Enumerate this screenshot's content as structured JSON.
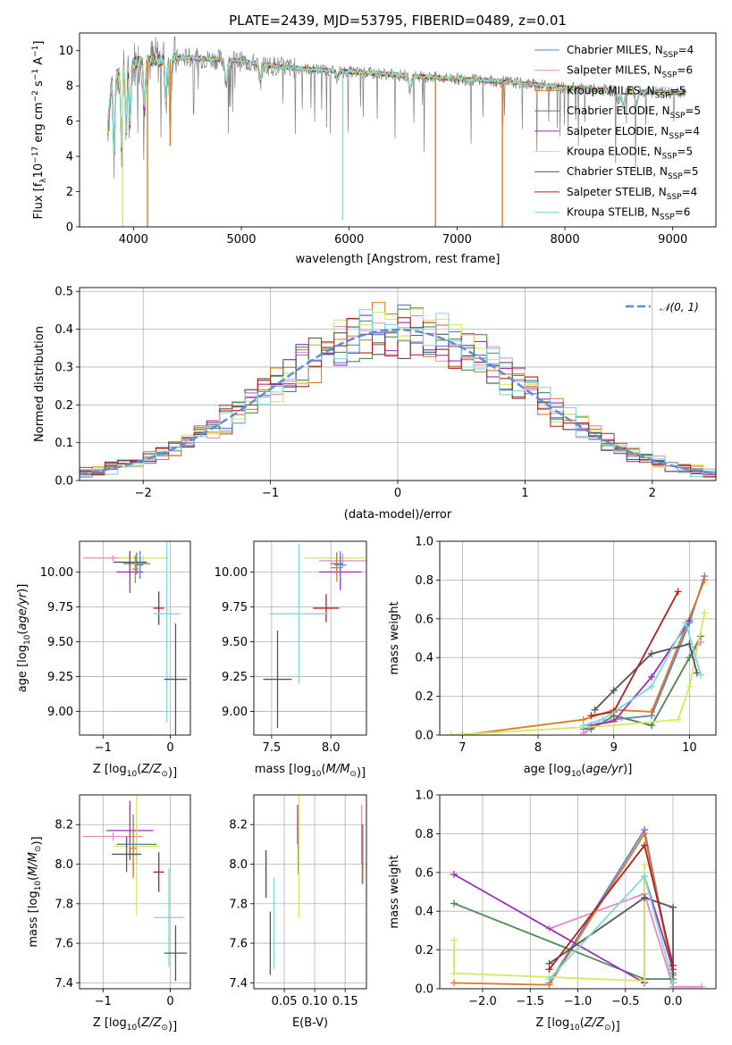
{
  "colors": {
    "Chabrier MILES": "#5b7fd6",
    "Salpeter MILES": "#e58ac0",
    "Kroupa MILES": "#e07a22",
    "Chabrier ELODIE": "#4f8a55",
    "Salpeter ELODIE": "#9a2fb5",
    "Kroupa ELODIE": "#d8e85a",
    "Chabrier STELIB": "#555555",
    "Salpeter STELIB": "#b21f1f",
    "Kroupa STELIB": "#7ed9d9",
    "data": "#808080",
    "normal_curve": "#5b8ed6"
  },
  "chart_data": [
    {
      "id": "spectrum",
      "type": "line",
      "title": "PLATE=2439, MJD=53795, FIBERID=0489, z=0.01",
      "xlabel": "wavelength [Angstrom, rest frame]",
      "ylabel": "Flux [fλ10⁻¹⁷ erg cm⁻² s⁻¹ A⁻¹]",
      "xlim": [
        3500,
        9400
      ],
      "ylim": [
        0,
        11
      ],
      "xticks": [
        4000,
        5000,
        6000,
        7000,
        8000,
        9000
      ],
      "yticks": [
        0,
        2,
        4,
        6,
        8,
        10
      ],
      "legend_position": "top-right",
      "legend": [
        {
          "label": "Chabrier MILES, N",
          "sub": "SSP",
          "suffix": "=4",
          "series": "Chabrier MILES"
        },
        {
          "label": "Salpeter MILES, N",
          "sub": "SSP",
          "suffix": "=6",
          "series": "Salpeter MILES"
        },
        {
          "label": "Kroupa MILES, N",
          "sub": "SSP",
          "suffix": "=5",
          "series": "Kroupa MILES"
        },
        {
          "label": "Chabrier ELODIE, N",
          "sub": "SSP",
          "suffix": "=5",
          "series": "Chabrier ELODIE"
        },
        {
          "label": "Salpeter ELODIE, N",
          "sub": "SSP",
          "suffix": "=4",
          "series": "Salpeter ELODIE"
        },
        {
          "label": "Kroupa ELODIE, N",
          "sub": "SSP",
          "suffix": "=5",
          "series": "Kroupa ELODIE"
        },
        {
          "label": "Chabrier STELIB, N",
          "sub": "SSP",
          "suffix": "=5",
          "series": "Chabrier STELIB"
        },
        {
          "label": "Salpeter STELIB, N",
          "sub": "SSP",
          "suffix": "=4",
          "series": "Salpeter STELIB"
        },
        {
          "label": "Kroupa STELIB, N",
          "sub": "SSP",
          "suffix": "=6",
          "series": "Kroupa STELIB"
        }
      ],
      "continuum": [
        [
          3760,
          5.6
        ],
        [
          3800,
          8.3
        ],
        [
          3900,
          9.0
        ],
        [
          4000,
          9.3
        ],
        [
          4100,
          9.4
        ],
        [
          4300,
          9.5
        ],
        [
          4500,
          9.6
        ],
        [
          4800,
          9.5
        ],
        [
          5000,
          9.4
        ],
        [
          5200,
          9.2
        ],
        [
          5500,
          9.0
        ],
        [
          6000,
          8.8
        ],
        [
          6500,
          8.6
        ],
        [
          7000,
          8.4
        ],
        [
          7500,
          8.2
        ],
        [
          8000,
          7.9
        ],
        [
          8500,
          7.7
        ],
        [
          9000,
          7.6
        ],
        [
          9120,
          7.6
        ]
      ],
      "absorption_features": [
        [
          3820,
          3.8
        ],
        [
          3890,
          4.4
        ],
        [
          3933,
          5.3
        ],
        [
          3968,
          5.9
        ],
        [
          4102,
          6.5
        ],
        [
          4300,
          6.9
        ],
        [
          4340,
          6.5
        ],
        [
          4861,
          8.2
        ],
        [
          5175,
          8.3
        ],
        [
          5890,
          8.4
        ],
        [
          6563,
          7.8
        ],
        [
          8498,
          7.1
        ],
        [
          8542,
          6.8
        ],
        [
          8662,
          6.9
        ]
      ],
      "model_dropouts": [
        {
          "x": 3900,
          "y": 0.0,
          "series": "Kroupa ELODIE"
        },
        {
          "x": 4130,
          "y": 0.0,
          "series": "Kroupa MILES"
        },
        {
          "x": 4340,
          "y": 4.6,
          "series": "Kroupa MILES"
        },
        {
          "x": 5940,
          "y": 0.4,
          "series": "Kroupa STELIB"
        },
        {
          "x": 6800,
          "y": 0.0,
          "series": "Kroupa MILES"
        },
        {
          "x": 7420,
          "y": 0.0,
          "series": "Kroupa MILES"
        }
      ]
    },
    {
      "id": "residuals",
      "type": "line",
      "xlabel": "(data-model)/error",
      "ylabel": "Normed distribution",
      "xlim": [
        -2.5,
        2.5
      ],
      "ylim": [
        0,
        0.51
      ],
      "xticks": [
        -2,
        -1,
        0,
        1,
        2
      ],
      "yticks": [
        0.0,
        0.1,
        0.2,
        0.3,
        0.4,
        0.5
      ],
      "grid": true,
      "legend_position": "top-right",
      "legend": [
        {
          "label": "𝒩(0, 1)",
          "series": "normal_curve"
        }
      ],
      "bin_edges_range": [
        -2.5,
        2.5
      ],
      "bin_width": 0.1,
      "curve": {
        "mean": 0,
        "sigma": 1,
        "style": "dashed"
      }
    },
    {
      "id": "age_vs_Z",
      "type": "scatter",
      "xlabel": "Z [log₁₀(Z/Z⊙)]",
      "ylabel": "age  [log₁₀(age/yr)]",
      "xlim": [
        -1.35,
        0.3
      ],
      "ylim": [
        8.83,
        10.22
      ],
      "xticks": [
        -1,
        0
      ],
      "yticks": [
        9.0,
        9.25,
        9.5,
        9.75,
        10.0
      ],
      "grid": true,
      "points": [
        {
          "series": "Salpeter MILES",
          "x": -0.85,
          "y": 10.1,
          "xerr": 0.45,
          "yerr": 0.02
        },
        {
          "series": "Chabrier STELIB",
          "x": -0.6,
          "y": 10.07,
          "xerr": 0.25,
          "yerr": 0.08
        },
        {
          "series": "Kroupa ELODIE",
          "x": -0.4,
          "y": 10.1,
          "xerr": 0.38,
          "yerr": 0.02
        },
        {
          "series": "Chabrier ELODIE",
          "x": -0.5,
          "y": 10.06,
          "xerr": 0.2,
          "yerr": 0.08
        },
        {
          "series": "Salpeter ELODIE",
          "x": -0.6,
          "y": 10.0,
          "xerr": 0.2,
          "yerr": 0.15
        },
        {
          "series": "Kroupa MILES",
          "x": -0.52,
          "y": 10.02,
          "xerr": 0.05,
          "yerr": 0.1
        },
        {
          "series": "Chabrier MILES",
          "x": -0.45,
          "y": 10.05,
          "xerr": 0.05,
          "yerr": 0.1
        },
        {
          "series": "Salpeter STELIB",
          "x": -0.17,
          "y": 9.74,
          "xerr": 0.08,
          "yerr": 0.12
        },
        {
          "series": "Kroupa STELIB",
          "x": -0.05,
          "y": 9.7,
          "xerr": 0.2,
          "yerr": 0.78
        },
        {
          "series": "Chabrier STELIB",
          "x": 0.08,
          "y": 9.23,
          "xerr": 0.17,
          "yerr": 0.4
        }
      ]
    },
    {
      "id": "age_vs_mass",
      "type": "scatter",
      "xlabel": "mass [log₁₀(M/M⊙)]",
      "ylabel": "",
      "xlim": [
        7.35,
        8.3
      ],
      "ylim": [
        8.83,
        10.22
      ],
      "xticks": [
        7.5,
        8.0
      ],
      "yticks": [
        9.0,
        9.25,
        9.5,
        9.75,
        10.0
      ],
      "grid": true,
      "points": [
        {
          "series": "Kroupa ELODIE",
          "x": 8.05,
          "y": 10.1,
          "xerr": 0.28,
          "yerr": 0.02
        },
        {
          "series": "Salpeter MILES",
          "x": 8.1,
          "y": 10.08,
          "xerr": 0.2,
          "yerr": 0.05
        },
        {
          "series": "Chabrier ELODIE",
          "x": 8.05,
          "y": 10.06,
          "xerr": 0.05,
          "yerr": 0.08
        },
        {
          "series": "Salpeter ELODIE",
          "x": 8.08,
          "y": 10.0,
          "xerr": 0.18,
          "yerr": 0.13
        },
        {
          "series": "Kroupa MILES",
          "x": 8.05,
          "y": 10.03,
          "xerr": 0.05,
          "yerr": 0.1
        },
        {
          "series": "Chabrier MILES",
          "x": 8.08,
          "y": 10.05,
          "xerr": 0.05,
          "yerr": 0.1
        },
        {
          "series": "Salpeter STELIB",
          "x": 7.96,
          "y": 9.74,
          "xerr": 0.11,
          "yerr": 0.1
        },
        {
          "series": "Kroupa STELIB",
          "x": 7.73,
          "y": 9.7,
          "xerr": 0.25,
          "yerr": 0.5
        },
        {
          "series": "Chabrier STELIB",
          "x": 7.55,
          "y": 9.23,
          "xerr": 0.12,
          "yerr": 0.35
        }
      ]
    },
    {
      "id": "mass_weight_vs_age",
      "type": "line",
      "xlabel": "age  [log₁₀(age/yr)]",
      "ylabel": "mass weight",
      "xlim": [
        6.7,
        10.35
      ],
      "ylim": [
        0,
        1.0
      ],
      "xticks": [
        7,
        8,
        9,
        10
      ],
      "yticks": [
        0.0,
        0.2,
        0.4,
        0.6,
        0.8,
        1.0
      ],
      "grid": true,
      "series": [
        {
          "name": "Chabrier MILES",
          "x": [
            8.6,
            9.0,
            9.5,
            10.0,
            10.2
          ],
          "y": [
            0.03,
            0.08,
            0.1,
            0.58,
            0.82
          ]
        },
        {
          "name": "Salpeter MILES",
          "x": [
            8.6,
            8.8,
            9.1,
            9.5,
            10.0,
            10.15
          ],
          "y": [
            0.01,
            0.06,
            0.09,
            0.05,
            0.4,
            0.48
          ]
        },
        {
          "name": "Kroupa MILES",
          "x": [
            7.0,
            8.6,
            9.0,
            9.5,
            10.2
          ],
          "y": [
            0.0,
            0.08,
            0.13,
            0.12,
            0.8
          ]
        },
        {
          "name": "Chabrier ELODIE",
          "x": [
            8.7,
            9.0,
            9.5,
            10.0,
            10.15
          ],
          "y": [
            0.03,
            0.1,
            0.05,
            0.4,
            0.51
          ]
        },
        {
          "name": "Salpeter ELODIE",
          "x": [
            8.7,
            9.0,
            9.5,
            10.0
          ],
          "y": [
            0.05,
            0.07,
            0.3,
            0.59
          ]
        },
        {
          "name": "Kroupa ELODIE",
          "x": [
            6.85,
            9.0,
            9.85,
            10.0,
            10.2
          ],
          "y": [
            0.0,
            0.05,
            0.08,
            0.25,
            0.63
          ]
        },
        {
          "name": "Chabrier STELIB",
          "x": [
            8.75,
            9.0,
            9.5,
            10.0,
            10.1
          ],
          "y": [
            0.13,
            0.23,
            0.42,
            0.47,
            0.32
          ]
        },
        {
          "name": "Salpeter STELIB",
          "x": [
            8.7,
            9.0,
            9.85
          ],
          "y": [
            0.1,
            0.12,
            0.74
          ]
        },
        {
          "name": "Kroupa STELIB",
          "x": [
            8.6,
            8.85,
            9.5,
            9.95,
            10.15
          ],
          "y": [
            0.05,
            0.08,
            0.25,
            0.58,
            0.31
          ]
        }
      ]
    },
    {
      "id": "mass_vs_Z",
      "type": "scatter",
      "xlabel": "Z [log₁₀(Z/Z⊙)]",
      "ylabel": "mass [log₁₀(M/M⊙)]",
      "xlim": [
        -1.35,
        0.3
      ],
      "ylim": [
        7.37,
        8.35
      ],
      "xticks": [
        -1,
        0
      ],
      "yticks": [
        7.4,
        7.6,
        7.8,
        8.0,
        8.2
      ],
      "grid": true,
      "points": [
        {
          "series": "Salpeter MILES",
          "x": -0.85,
          "y": 8.14,
          "xerr": 0.45,
          "yerr": 0.02
        },
        {
          "series": "Salpeter ELODIE",
          "x": -0.6,
          "y": 8.17,
          "xerr": 0.35,
          "yerr": 0.15
        },
        {
          "series": "Chabrier ELODIE",
          "x": -0.5,
          "y": 8.1,
          "xerr": 0.3,
          "yerr": 0.1
        },
        {
          "series": "Kroupa ELODIE",
          "x": -0.5,
          "y": 8.09,
          "xerr": 0.35,
          "yerr": 0.35
        },
        {
          "series": "Chabrier MILES",
          "x": -0.55,
          "y": 8.1,
          "xerr": 0.2,
          "yerr": 0.15
        },
        {
          "series": "Kroupa MILES",
          "x": -0.55,
          "y": 8.08,
          "xerr": 0.05,
          "yerr": 0.15
        },
        {
          "series": "Chabrier STELIB",
          "x": -0.65,
          "y": 8.05,
          "xerr": 0.22,
          "yerr": 0.09
        },
        {
          "series": "Salpeter STELIB",
          "x": -0.17,
          "y": 7.96,
          "xerr": 0.08,
          "yerr": 0.1
        },
        {
          "series": "Kroupa STELIB",
          "x": -0.02,
          "y": 7.73,
          "xerr": 0.22,
          "yerr": 0.25
        },
        {
          "series": "Chabrier STELIB",
          "x": 0.08,
          "y": 7.55,
          "xerr": 0.17,
          "yerr": 0.14
        }
      ]
    },
    {
      "id": "mass_vs_ebv",
      "type": "scatter",
      "xlabel": "E(B-V)",
      "ylabel": "",
      "xlim": [
        0.0,
        0.185
      ],
      "ylim": [
        7.37,
        8.35
      ],
      "xticks": [
        0.05,
        0.1,
        0.15
      ],
      "yticks": [
        7.4,
        7.6,
        7.8,
        8.0,
        8.2
      ],
      "grid": true,
      "points": [
        {
          "series": "Salpeter STELIB",
          "x": 0.02,
          "y": 7.95,
          "xerr": 0.0,
          "yerr": 0.12
        },
        {
          "series": "Chabrier STELIB",
          "x": 0.027,
          "y": 7.6,
          "xerr": 0.0,
          "yerr": 0.16
        },
        {
          "series": "Kroupa STELIB",
          "x": 0.033,
          "y": 7.7,
          "xerr": 0.0,
          "yerr": 0.23
        },
        {
          "series": "Salpeter ELODIE",
          "x": 0.072,
          "y": 8.2,
          "xerr": 0.0,
          "yerr": 0.1
        },
        {
          "series": "Chabrier ELODIE",
          "x": 0.073,
          "y": 8.1,
          "xerr": 0.0,
          "yerr": 0.15
        },
        {
          "series": "Kroupa ELODIE",
          "x": 0.074,
          "y": 8.05,
          "xerr": 0.0,
          "yerr": 0.32
        },
        {
          "series": "Salpeter MILES",
          "x": 0.177,
          "y": 8.15,
          "xerr": 0.0,
          "yerr": 0.15
        },
        {
          "series": "Kroupa MILES",
          "x": 0.178,
          "y": 8.05,
          "xerr": 0.0,
          "yerr": 0.15
        },
        {
          "series": "Chabrier MILES",
          "x": 0.179,
          "y": 8.05,
          "xerr": 0.0,
          "yerr": 0.15
        }
      ]
    },
    {
      "id": "mass_weight_vs_Z",
      "type": "line",
      "xlabel": "Z [log₁₀(Z/Z⊙)]",
      "ylabel": "mass weight",
      "xlim": [
        -2.45,
        0.45
      ],
      "ylim": [
        0,
        1.0
      ],
      "xticks": [
        -2.0,
        -1.5,
        -1.0,
        -0.5,
        0.0
      ],
      "yticks": [
        0.0,
        0.2,
        0.4,
        0.6,
        0.8,
        1.0
      ],
      "grid": true,
      "series": [
        {
          "name": "Chabrier MILES",
          "x": [
            -1.3,
            -0.3,
            0.0
          ],
          "y": [
            0.03,
            0.82,
            0.08
          ]
        },
        {
          "name": "Salpeter MILES",
          "x": [
            -1.3,
            -0.3,
            0.0,
            0.3
          ],
          "y": [
            0.31,
            0.49,
            0.01,
            0.01
          ]
        },
        {
          "name": "Kroupa MILES",
          "x": [
            -2.3,
            -1.3,
            -0.3,
            0.0
          ],
          "y": [
            0.03,
            0.02,
            0.8,
            0.07
          ]
        },
        {
          "name": "Chabrier ELODIE",
          "x": [
            -2.3,
            -0.3,
            0.0
          ],
          "y": [
            0.44,
            0.05,
            0.05
          ]
        },
        {
          "name": "Salpeter ELODIE",
          "x": [
            -2.3,
            -0.3,
            -0.3,
            0.0
          ],
          "y": [
            0.59,
            0.03,
            0.58,
            0.1
          ]
        },
        {
          "name": "Kroupa ELODIE",
          "x": [
            -2.3,
            -2.3,
            -0.3,
            -0.3
          ],
          "y": [
            0.25,
            0.08,
            0.04,
            0.64
          ]
        },
        {
          "name": "Chabrier STELIB",
          "x": [
            -1.3,
            -0.3,
            0.0,
            0.0
          ],
          "y": [
            0.13,
            0.47,
            0.42,
            0.03
          ]
        },
        {
          "name": "Salpeter STELIB",
          "x": [
            -1.3,
            -0.3,
            0.0
          ],
          "y": [
            0.1,
            0.74,
            0.12
          ]
        },
        {
          "name": "Kroupa STELIB",
          "x": [
            -1.3,
            -0.3,
            0.0
          ],
          "y": [
            0.05,
            0.58,
            0.03
          ]
        }
      ]
    }
  ]
}
